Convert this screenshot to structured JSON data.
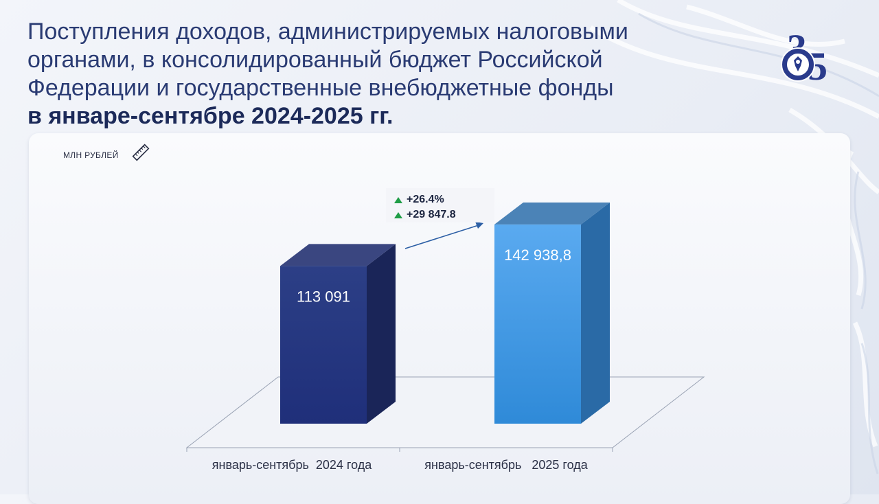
{
  "title": {
    "line1": "Поступления доходов, администрируемых налоговыми",
    "line2": "органами, в консолидированный бюджет Российской",
    "line3": "Федерации и государственные внебюджетные фонды",
    "line4": "в январе-сентябре 2024-2025 гг."
  },
  "unit_label": "МЛН РУБЛЕЙ",
  "logo": {
    "icon": "fns-35-emblem-icon"
  },
  "delta": {
    "percent": "+26.4%",
    "absolute": "+29 847.8"
  },
  "colors": {
    "bar_2024": "#233a86",
    "bar_2025": "#3d97df",
    "title": "#2a3b73",
    "up_arrow": "#1f9d46"
  },
  "chart_data": {
    "type": "bar",
    "categories": [
      "январь-сентябрь  2024 года",
      "январь-сентябрь   2025 года"
    ],
    "values": [
      113091,
      142938.8
    ],
    "data_labels": [
      "113 091",
      "142 938,8"
    ],
    "title": "",
    "xlabel": "",
    "ylabel": "МЛН РУБЛЕЙ",
    "ylim": [
      0,
      160000
    ],
    "grid": false,
    "legend": "none"
  }
}
